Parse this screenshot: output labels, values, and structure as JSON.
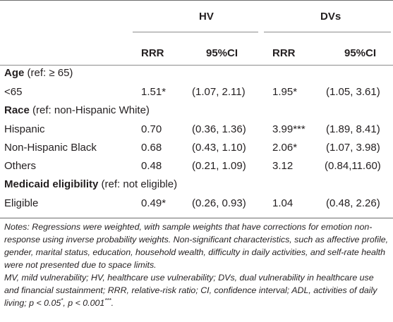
{
  "header": {
    "groups": [
      "HV",
      "DVs"
    ],
    "subcolumns": [
      "RRR",
      "95%CI",
      "RRR",
      "95%CI"
    ]
  },
  "sections": [
    {
      "title": "Age",
      "ref": " (ref: ≥ 65)",
      "rows": [
        {
          "label": "<65",
          "hv_rrr": "1.51*",
          "hv_ci": "(1.07, 2.11)",
          "dv_rrr": "1.95*",
          "dv_ci": "(1.05, 3.61)"
        }
      ]
    },
    {
      "title": "Race",
      "ref": " (ref: non-Hispanic White)",
      "rows": [
        {
          "label": "Hispanic",
          "hv_rrr": "0.70",
          "hv_ci": "(0.36, 1.36)",
          "dv_rrr": "3.99***",
          "dv_ci": "(1.89, 8.41)"
        },
        {
          "label": "Non-Hispanic Black",
          "hv_rrr": "0.68",
          "hv_ci": "(0.43, 1.10)",
          "dv_rrr": "2.06*",
          "dv_ci": "(1.07, 3.98)"
        },
        {
          "label": "Others",
          "hv_rrr": "0.48",
          "hv_ci": "(0.21, 1.09)",
          "dv_rrr": "3.12",
          "dv_ci": "(0.84,11.60)"
        }
      ]
    },
    {
      "title": "Medicaid eligibility",
      "ref": " (ref: not eligible)",
      "rows": [
        {
          "label": "Eligible",
          "hv_rrr": "0.49*",
          "hv_ci": "(0.26, 0.93)",
          "dv_rrr": "1.04",
          "dv_ci": "(0.48, 2.26)"
        }
      ]
    }
  ],
  "notes": {
    "p1": "Notes: Regressions were weighted, with sample weights that have corrections for emotion non-response using inverse probability weights. Non-significant characteristics, such as affective profile, gender, marital status, education, household wealth, difficulty in daily activities, and self-rate health were not presented due to space limits.",
    "p2_text": "MV, mild vulnerability; HV, healthcare use vulnerability; DVs, dual vulnerability in healthcare use and financial sustainment; RRR, relative-risk ratio; CI, confidence interval; ADL, activities of daily living; ",
    "p2_p1": "p < 0.05",
    "p2_sup1": "*",
    "p2_sep": ", ",
    "p2_p2": "p < 0.001",
    "p2_sup2": "***",
    "p2_end": "."
  }
}
